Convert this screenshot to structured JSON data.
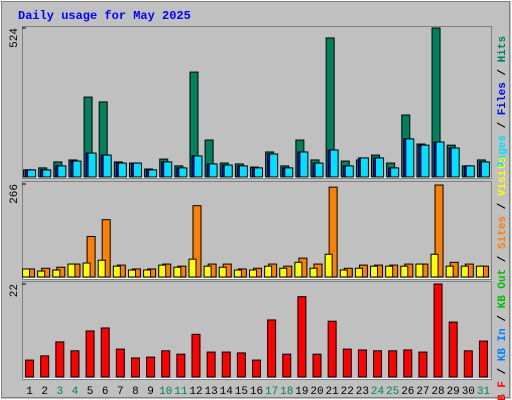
{
  "chart_data": [
    {
      "type": "bar",
      "title": "Daily usage for May 2025",
      "legend_separator": "/",
      "ylim": [
        0,
        524
      ],
      "yticks": [
        524
      ],
      "series": [
        {
          "name": "Hits",
          "color": "#00805C",
          "values": [
            25,
            32,
            53,
            60,
            281,
            264,
            53,
            49,
            28,
            63,
            39,
            369,
            130,
            49,
            46,
            35,
            88,
            39,
            130,
            60,
            489,
            56,
            60,
            77,
            49,
            218,
            116,
            524,
            112,
            39,
            60
          ]
        },
        {
          "name": "Files",
          "color": "#0000FF",
          "values": [
            25,
            25,
            39,
            56,
            84,
            77,
            49,
            49,
            25,
            53,
            32,
            74,
            46,
            42,
            39,
            32,
            81,
            32,
            88,
            49,
            95,
            39,
            67,
            67,
            32,
            134,
            112,
            123,
            102,
            39,
            53
          ]
        },
        {
          "name": "Pages",
          "color": "#00E0FF",
          "values": [
            25,
            25,
            39,
            56,
            84,
            77,
            49,
            49,
            25,
            53,
            32,
            74,
            46,
            42,
            39,
            32,
            81,
            32,
            88,
            49,
            95,
            39,
            67,
            67,
            32,
            134,
            112,
            123,
            102,
            39,
            53
          ]
        }
      ]
    },
    {
      "type": "bar",
      "ylim": [
        0,
        266
      ],
      "yticks": [
        266
      ],
      "series": [
        {
          "name": "Visits",
          "color": "#FFFF00",
          "values": [
            23,
            17,
            20,
            37,
            40,
            48,
            31,
            20,
            20,
            34,
            28,
            51,
            31,
            28,
            20,
            20,
            31,
            25,
            42,
            25,
            65,
            20,
            25,
            31,
            31,
            31,
            37,
            65,
            31,
            31,
            31
          ]
        },
        {
          "name": "Sites",
          "color": "#FF8000",
          "values": [
            23,
            25,
            28,
            37,
            116,
            164,
            34,
            23,
            23,
            37,
            31,
            204,
            37,
            37,
            23,
            25,
            37,
            31,
            54,
            37,
            257,
            25,
            34,
            34,
            34,
            37,
            37,
            263,
            42,
            37,
            31
          ]
        }
      ]
    },
    {
      "type": "bar",
      "ylim": [
        0,
        22
      ],
      "yticks": [
        22
      ],
      "categories": [
        "1",
        "2",
        "3",
        "4",
        "5",
        "6",
        "7",
        "8",
        "9",
        "10",
        "11",
        "12",
        "13",
        "14",
        "15",
        "16",
        "17",
        "18",
        "19",
        "20",
        "21",
        "22",
        "23",
        "24",
        "25",
        "26",
        "27",
        "28",
        "29",
        "30",
        "31"
      ],
      "category_colors": [
        "#000000",
        "#000000",
        "#00805C",
        "#00805C",
        "#000000",
        "#000000",
        "#000000",
        "#000000",
        "#000000",
        "#00805C",
        "#00805C",
        "#000000",
        "#000000",
        "#000000",
        "#000000",
        "#000000",
        "#00805C",
        "#00805C",
        "#000000",
        "#000000",
        "#000000",
        "#000000",
        "#000000",
        "#00805C",
        "#00805C",
        "#000000",
        "#000000",
        "#000000",
        "#000000",
        "#000000",
        "#00805C"
      ],
      "series": [
        {
          "name": "KB F",
          "color": "#FF0000",
          "values": [
            4.0,
            5.0,
            8.3,
            6.2,
            10.9,
            11.6,
            6.6,
            4.5,
            4.7,
            6.2,
            5.4,
            10.1,
            5.9,
            5.9,
            5.7,
            4.0,
            13.5,
            5.4,
            19.0,
            5.4,
            13.2,
            6.6,
            6.4,
            6.2,
            6.2,
            6.4,
            5.9,
            22,
            13.0,
            6.2,
            8.5
          ]
        }
      ],
      "legend_extra": [
        {
          "name": "KB In",
          "color": "#0080FF"
        },
        {
          "name": "KB Out",
          "color": "#00C000"
        }
      ]
    }
  ]
}
